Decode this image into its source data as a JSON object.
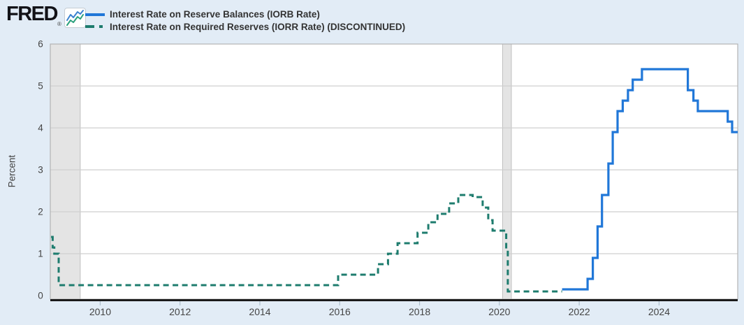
{
  "header": {
    "logo_text": "FRED",
    "reg_mark": "®",
    "logo_icon": "fred-graph-icon"
  },
  "colors": {
    "background": "#e2ecf6",
    "plot_background": "#ffffff",
    "grid": "#cfcfcf",
    "plot_border": "#b3b3b3",
    "recession_band": "#e4e4e4",
    "recession_band_edge": "#c0c0c0",
    "axis_baseline": "#1a1a1a",
    "tick_mark": "#aebecb",
    "axis_text": "#444444",
    "legend_text": "#333333",
    "iorb_blue": "#2077d8",
    "iorr_teal": "#1e7c6e",
    "logo_icon_blue": "#3b82d0",
    "logo_icon_green": "#2aa07c"
  },
  "chart_data": {
    "type": "line",
    "step": true,
    "title": "",
    "xlabel": "",
    "ylabel": "Percent",
    "ylim": [
      0,
      6
    ],
    "yticks": [
      0,
      1,
      2,
      3,
      4,
      5,
      6
    ],
    "xlim": [
      2008.75,
      2025.97
    ],
    "xticks": [
      2010,
      2012,
      2014,
      2016,
      2018,
      2020,
      2022,
      2024
    ],
    "grid": true,
    "legend_position": "top-left",
    "recession_bands": [
      [
        2008.75,
        2009.5
      ],
      [
        2020.08,
        2020.3
      ]
    ],
    "series": [
      {
        "id": "iorb",
        "name": "Interest Rate on Reserve Balances (IORB Rate)",
        "color": "#2077d8",
        "style": "solid",
        "points": [
          [
            2021.57,
            0.15
          ],
          [
            2022.21,
            0.4
          ],
          [
            2022.34,
            0.9
          ],
          [
            2022.46,
            1.65
          ],
          [
            2022.57,
            2.4
          ],
          [
            2022.73,
            3.15
          ],
          [
            2022.84,
            3.9
          ],
          [
            2022.96,
            4.4
          ],
          [
            2023.09,
            4.65
          ],
          [
            2023.22,
            4.9
          ],
          [
            2023.34,
            5.15
          ],
          [
            2023.57,
            5.4
          ],
          [
            2024.72,
            4.9
          ],
          [
            2024.86,
            4.65
          ],
          [
            2024.97,
            4.4
          ],
          [
            2025.72,
            4.15
          ],
          [
            2025.83,
            3.9
          ],
          [
            2025.97,
            3.9
          ]
        ]
      },
      {
        "id": "iorr",
        "name": "Interest Rate on Required Reserves (IORR Rate) (DISCONTINUED)",
        "color": "#1e7c6e",
        "style": "dashed",
        "points": [
          [
            2008.77,
            1.4
          ],
          [
            2008.81,
            1.15
          ],
          [
            2008.85,
            1.0
          ],
          [
            2008.96,
            0.25
          ],
          [
            2015.96,
            0.5
          ],
          [
            2016.96,
            0.75
          ],
          [
            2017.21,
            1.0
          ],
          [
            2017.45,
            1.25
          ],
          [
            2017.95,
            1.5
          ],
          [
            2018.22,
            1.75
          ],
          [
            2018.45,
            1.95
          ],
          [
            2018.74,
            2.2
          ],
          [
            2018.97,
            2.4
          ],
          [
            2019.33,
            2.35
          ],
          [
            2019.58,
            2.1
          ],
          [
            2019.72,
            1.8
          ],
          [
            2019.83,
            1.55
          ],
          [
            2020.17,
            1.1
          ],
          [
            2020.21,
            0.1
          ],
          [
            2021.57,
            0.1
          ]
        ]
      }
    ]
  }
}
